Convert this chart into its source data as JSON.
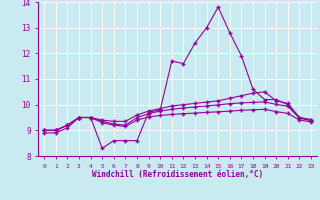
{
  "xlabel": "Windchill (Refroidissement éolien,°C)",
  "ylabel": "",
  "bg_color": "#c8eaf0",
  "grid_color": "#ffffff",
  "line_color": "#990099",
  "marker": "+",
  "xmin": 0,
  "xmax": 23,
  "ymin": 8,
  "ymax": 14,
  "hours": [
    0,
    1,
    2,
    3,
    4,
    5,
    6,
    7,
    8,
    9,
    10,
    11,
    12,
    13,
    14,
    15,
    16,
    17,
    18,
    19,
    20,
    21,
    22,
    23
  ],
  "line1": [
    8.9,
    8.9,
    9.1,
    9.5,
    9.5,
    8.3,
    8.6,
    8.6,
    8.6,
    9.7,
    9.8,
    11.7,
    11.6,
    12.4,
    13.0,
    13.8,
    12.8,
    11.9,
    10.6,
    10.2,
    10.2,
    10.0,
    9.5,
    9.4
  ],
  "line2": [
    9.0,
    9.0,
    9.2,
    9.5,
    9.5,
    9.4,
    9.35,
    9.35,
    9.6,
    9.75,
    9.85,
    9.95,
    10.0,
    10.05,
    10.1,
    10.15,
    10.25,
    10.35,
    10.45,
    10.5,
    10.15,
    10.05,
    9.5,
    9.42
  ],
  "line3": [
    9.0,
    9.0,
    9.2,
    9.5,
    9.5,
    9.35,
    9.25,
    9.2,
    9.5,
    9.65,
    9.75,
    9.82,
    9.87,
    9.91,
    9.95,
    9.99,
    10.04,
    10.07,
    10.09,
    10.11,
    10.01,
    9.94,
    9.47,
    9.38
  ],
  "line4": [
    9.0,
    9.0,
    9.2,
    9.5,
    9.5,
    9.3,
    9.2,
    9.15,
    9.4,
    9.52,
    9.58,
    9.62,
    9.65,
    9.67,
    9.7,
    9.72,
    9.75,
    9.78,
    9.8,
    9.82,
    9.73,
    9.66,
    9.4,
    9.33
  ]
}
